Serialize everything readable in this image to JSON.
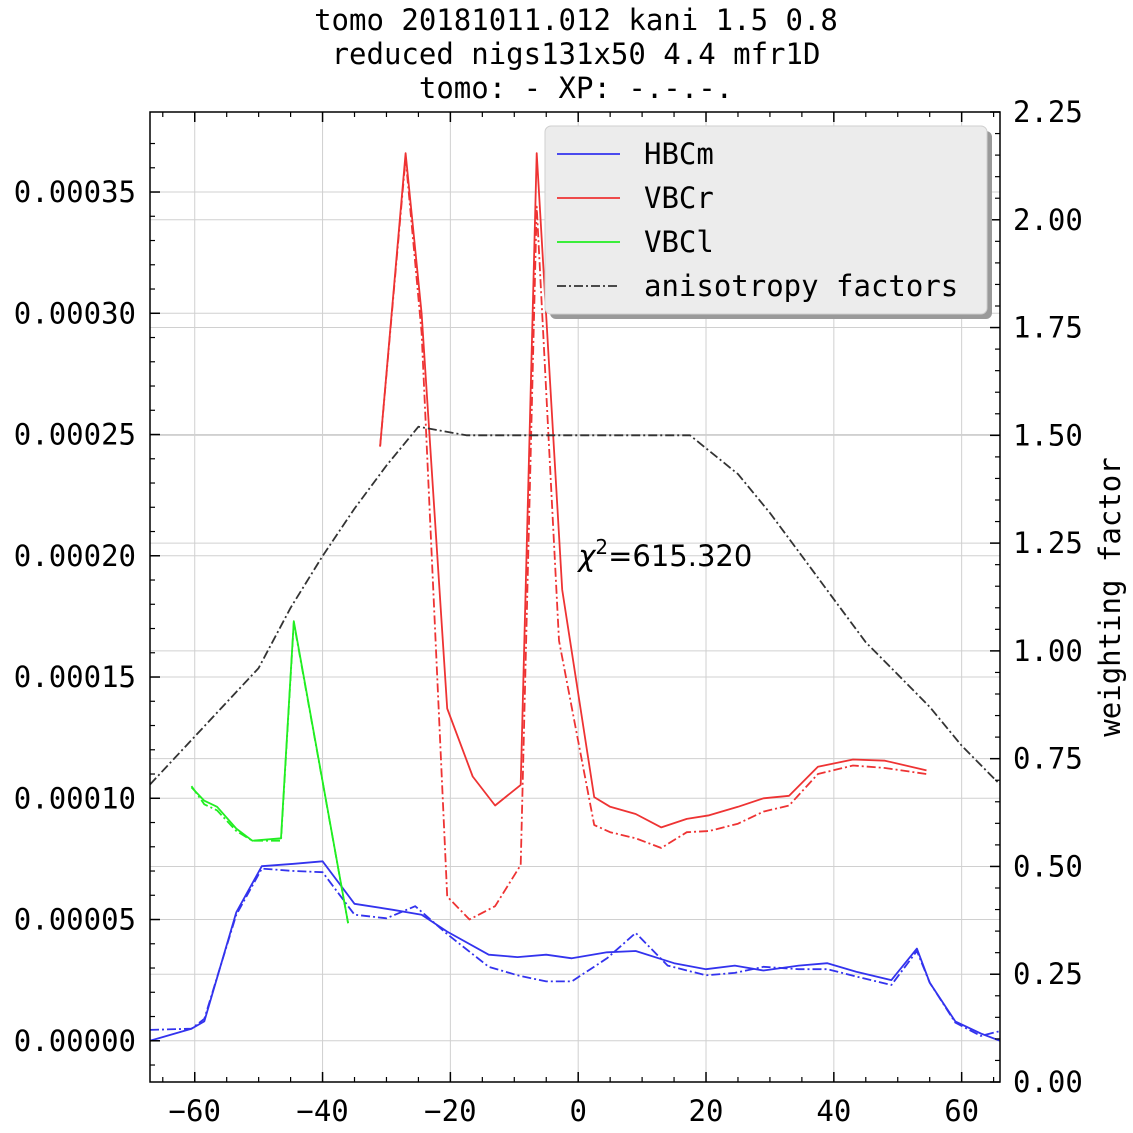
{
  "chart_data": {
    "type": "line",
    "title_lines": [
      "tomo 20181011.012 kani 1.5 0.8",
      "reduced nigs131x50 4.4 mfr1D",
      "tomo: -   XP: -.-.-."
    ],
    "xlabel": "",
    "ylabel": "",
    "y2label": "weighting factor",
    "xlim": [
      -67,
      66
    ],
    "ylim": [
      -1.7e-05,
      0.000383
    ],
    "y2lim": [
      0.0,
      2.25
    ],
    "xticks": [
      -60,
      -40,
      -20,
      0,
      20,
      40,
      60
    ],
    "xtick_labels": [
      "−60",
      "−40",
      "−20",
      "0",
      "20",
      "40",
      "60"
    ],
    "yticks": [
      0.0,
      5e-05,
      0.0001,
      0.00015,
      0.0002,
      0.00025,
      0.0003,
      0.00035
    ],
    "ytick_labels": [
      "0.00000",
      "0.00005",
      "0.00010",
      "0.00015",
      "0.00020",
      "0.00025",
      "0.00030",
      "0.00035"
    ],
    "y2ticks": [
      0.0,
      0.25,
      0.5,
      0.75,
      1.0,
      1.25,
      1.5,
      1.75,
      2.0,
      2.25
    ],
    "y2tick_labels": [
      "0.00",
      "0.25",
      "0.50",
      "0.75",
      "1.00",
      "1.25",
      "1.50",
      "1.75",
      "2.00",
      "2.25"
    ],
    "grid": true,
    "legend_position": "top-right",
    "annotation": {
      "prefix": "χ",
      "sup": "2",
      "text": "=615.320",
      "x": 0,
      "y": 0.0002
    },
    "series": [
      {
        "name": "HBCm",
        "color": "#3333ee",
        "style": "solid",
        "x": [
          -67,
          -60.5,
          -58.5,
          -53.5,
          -49.5,
          -44.5,
          -40,
          -35,
          -29,
          -24.5,
          -20.5,
          -14,
          -9.5,
          -5,
          -1,
          4.5,
          9,
          15,
          20,
          24.5,
          29,
          34.5,
          39,
          43.5,
          49,
          53,
          55,
          59,
          63,
          66
        ],
        "y": [
          0.0,
          5e-06,
          8e-06,
          5.3e-05,
          7.2e-05,
          7.3e-05,
          7.4e-05,
          5.65e-05,
          5.4e-05,
          5.2e-05,
          4.5e-05,
          3.55e-05,
          3.45e-05,
          3.55e-05,
          3.4e-05,
          3.65e-05,
          3.7e-05,
          3.2e-05,
          2.95e-05,
          3.1e-05,
          2.9e-05,
          3.1e-05,
          3.2e-05,
          2.85e-05,
          2.5e-05,
          3.8e-05,
          2.4e-05,
          8e-06,
          3e-06,
          0.0
        ]
      },
      {
        "name": "",
        "color": "#3333ee",
        "style": "dashdot",
        "x": [
          -67,
          -60.5,
          -58.5,
          -53.5,
          -49.5,
          -44.5,
          -40,
          -35,
          -30,
          -25.5,
          -20.5,
          -14,
          -9.5,
          -5,
          -1,
          4.5,
          9,
          14,
          20,
          24.5,
          29,
          34.5,
          39,
          43.5,
          49,
          53,
          55,
          59,
          63,
          66
        ],
        "y": [
          4.5e-06,
          5e-06,
          9e-06,
          5.2e-05,
          7.1e-05,
          7e-05,
          6.95e-05,
          5.2e-05,
          5.05e-05,
          5.55e-05,
          4.4e-05,
          3.05e-05,
          2.7e-05,
          2.45e-05,
          2.45e-05,
          3.4e-05,
          4.45e-05,
          3.1e-05,
          2.7e-05,
          2.8e-05,
          3.05e-05,
          2.95e-05,
          2.95e-05,
          2.65e-05,
          2.3e-05,
          3.7e-05,
          2.4e-05,
          7.5e-06,
          2e-06,
          4e-06
        ]
      },
      {
        "name": "VBCr",
        "color": "#ee3333",
        "style": "solid",
        "x": [
          -31,
          -27,
          -24.5,
          -20.5,
          -16.5,
          -13,
          -9,
          -6.5,
          -2.5,
          2.5,
          5,
          9,
          13,
          17,
          20.5,
          25,
          29,
          33,
          37.5,
          43,
          48,
          54.5
        ],
        "y": [
          0.000245,
          0.000366,
          0.0003,
          0.000137,
          0.000109,
          9.7e-05,
          0.0001055,
          0.000366,
          0.000186,
          0.0001005,
          9.65e-05,
          9.35e-05,
          8.8e-05,
          9.15e-05,
          9.3e-05,
          9.65e-05,
          0.0001,
          0.000101,
          0.000113,
          0.000116,
          0.0001155,
          0.0001115
        ]
      },
      {
        "name": "",
        "color": "#ee3333",
        "style": "dashdot",
        "x": [
          -31,
          -27,
          -24.5,
          -20.5,
          -17,
          -13,
          -9,
          -6.5,
          -3,
          2.5,
          5,
          9,
          13,
          17,
          20.5,
          25,
          29,
          33,
          37.5,
          43,
          48,
          54.5
        ],
        "y": [
          0.000245,
          0.000364,
          0.000292,
          5.95e-05,
          5e-05,
          5.55e-05,
          7.25e-05,
          0.000344,
          0.000165,
          8.9e-05,
          8.6e-05,
          8.35e-05,
          7.95e-05,
          8.6e-05,
          8.65e-05,
          8.95e-05,
          9.45e-05,
          9.7e-05,
          0.00011,
          0.0001135,
          0.0001125,
          0.00011
        ]
      },
      {
        "name": "VBCl",
        "color": "#22ee22",
        "style": "solid",
        "x": [
          -60.5,
          -58.5,
          -56.5,
          -53.5,
          -51,
          -46.5,
          -44.5,
          -36
        ],
        "y": [
          0.0001045,
          9.9e-05,
          9.65e-05,
          8.75e-05,
          8.25e-05,
          8.35e-05,
          0.000173,
          4.85e-05
        ]
      },
      {
        "name": "",
        "color": "#22ee22",
        "style": "dashdot",
        "x": [
          -60.5,
          -58.5,
          -56.5,
          -53.5,
          -51,
          -46.5,
          -44.5,
          -36
        ],
        "y": [
          0.000105,
          9.75e-05,
          9.5e-05,
          8.65e-05,
          8.25e-05,
          8.25e-05,
          0.0001725,
          4.85e-05
        ]
      },
      {
        "name": "anisotropy factors",
        "color": "#333333",
        "style": "dashdot",
        "axis": "right",
        "x": [
          -67,
          -50,
          -45,
          -40,
          -35,
          -30,
          -25,
          -17.5,
          0,
          17.5,
          25,
          30,
          35,
          40,
          45,
          49,
          55,
          60,
          66
        ],
        "y": [
          0.69,
          0.96,
          1.1,
          1.22,
          1.33,
          1.43,
          1.52,
          1.5,
          1.5,
          1.5,
          1.41,
          1.32,
          1.22,
          1.12,
          1.02,
          0.96,
          0.87,
          0.78,
          0.69
        ]
      }
    ]
  }
}
